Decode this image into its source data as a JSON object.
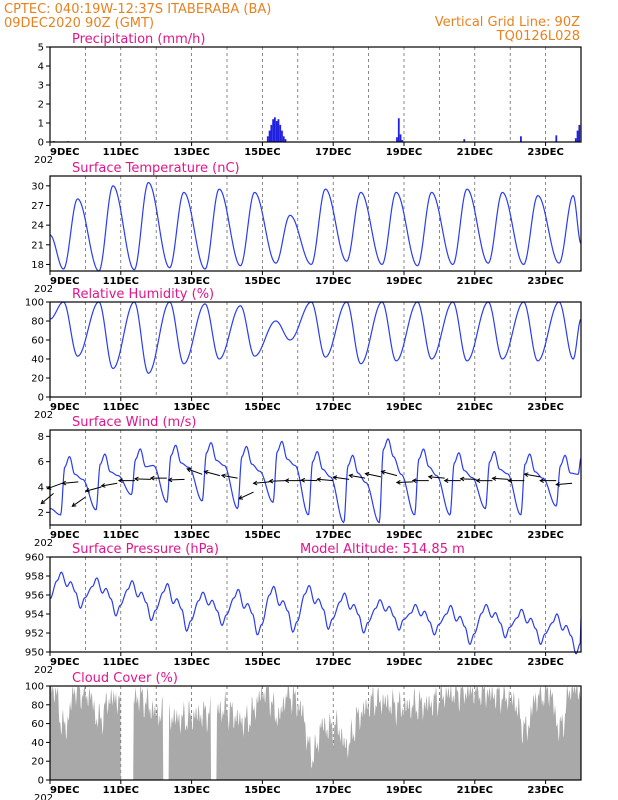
{
  "header": {
    "left_line1": "CPTEC:   040:19W-12:37S   ITABERABA (BA)",
    "left_line2": "09DEC2020 90Z (GMT)",
    "right_line1": "Vertical Grid Line: 90Z",
    "right_line2": "TQ0126L028"
  },
  "colors": {
    "header": "#e8821e",
    "title": "#e0168c",
    "line": "#2b3df0",
    "bar": "#2020e0",
    "cloud": "#a9a9a9",
    "arrow": "#000000"
  },
  "x_axis": {
    "days": 15,
    "tick_labels": [
      "9DEC",
      "11DEC",
      "13DEC",
      "15DEC",
      "17DEC",
      "19DEC",
      "21DEC",
      "23DEC"
    ],
    "tick_days": [
      0,
      2,
      4,
      6,
      8,
      10,
      12,
      14
    ],
    "below_label": "202"
  },
  "chart_data": [
    {
      "id": "precip",
      "type": "bar",
      "title": "Precipitation (mm/h)",
      "ylim": [
        0,
        5
      ],
      "yticks": [
        0,
        1,
        2,
        3,
        4,
        5
      ],
      "points": [
        [
          0.1,
          0.05
        ],
        [
          0.5,
          0.04
        ],
        [
          6.15,
          0.3
        ],
        [
          6.2,
          0.6
        ],
        [
          6.25,
          0.9
        ],
        [
          6.3,
          1.2
        ],
        [
          6.35,
          1.3
        ],
        [
          6.4,
          1.1
        ],
        [
          6.45,
          1.2
        ],
        [
          6.5,
          0.9
        ],
        [
          6.55,
          0.6
        ],
        [
          6.6,
          0.3
        ],
        [
          6.65,
          0.15
        ],
        [
          9.8,
          0.25
        ],
        [
          9.85,
          1.25
        ],
        [
          9.9,
          0.4
        ],
        [
          9.95,
          0.1
        ],
        [
          11.7,
          0.15
        ],
        [
          13.3,
          0.3
        ],
        [
          14.3,
          0.35
        ],
        [
          14.85,
          0.2
        ],
        [
          14.9,
          0.6
        ],
        [
          14.95,
          0.9
        ]
      ]
    },
    {
      "id": "temp",
      "type": "line",
      "title": "Surface Temperature (nC)",
      "ylim": [
        17,
        31.5
      ],
      "yticks": [
        18,
        21,
        24,
        27,
        30
      ],
      "diurnal": {
        "mins": [
          17.3,
          17.0,
          17.2,
          17.5,
          17.3,
          17.8,
          18.2,
          18.0,
          18.5,
          18.0,
          17.8,
          18.0,
          18.2,
          18.0,
          18.2
        ],
        "maxs": [
          28.0,
          30.0,
          30.5,
          29.0,
          29.5,
          29.0,
          25.5,
          29.5,
          29.0,
          29.0,
          29.0,
          29.5,
          29.0,
          28.5,
          28.5
        ],
        "end": 21.2,
        "min_hour": 0.38,
        "max_hour": 0.78
      }
    },
    {
      "id": "rh",
      "type": "line",
      "title": "Relative Humidity (%)",
      "ylim": [
        0,
        100
      ],
      "yticks": [
        0,
        20,
        40,
        60,
        80,
        100
      ],
      "diurnal": {
        "peaks": [
          100,
          100,
          100,
          100,
          98,
          96,
          80,
          100,
          100,
          100,
          100,
          100,
          100,
          100,
          100
        ],
        "troughs": [
          43,
          30,
          25,
          35,
          40,
          43,
          60,
          42,
          35,
          38,
          40,
          38,
          40,
          38,
          40
        ],
        "end": 82,
        "peak_hour": 0.38,
        "trough_hour": 0.78
      }
    },
    {
      "id": "wind",
      "type": "line",
      "title": "Surface Wind (m/s)",
      "ylim": [
        1,
        8.5
      ],
      "yticks": [
        2,
        4,
        6,
        8
      ],
      "diurnal": {
        "lows": [
          1.8,
          2.2,
          3.4,
          2.8,
          2.9,
          2.3,
          2.8,
          1.8,
          1.2,
          1.2,
          1.8,
          1.8,
          2.3,
          1.8,
          2.5
        ],
        "highs": [
          6.4,
          6.6,
          7.0,
          7.3,
          7.5,
          7.2,
          7.6,
          6.8,
          6.5,
          7.8,
          7.0,
          6.7,
          6.8,
          6.6,
          6.5
        ],
        "end": 6.3,
        "low_hour": 0.3,
        "high_hour": 0.55
      },
      "arrows": [
        [
          0.1,
          3.5,
          220
        ],
        [
          0.35,
          4.3,
          200
        ],
        [
          0.8,
          4.4,
          185
        ],
        [
          1.0,
          3.2,
          215
        ],
        [
          1.45,
          4.0,
          195
        ],
        [
          1.9,
          4.3,
          190
        ],
        [
          2.4,
          4.5,
          180
        ],
        [
          2.85,
          4.6,
          178
        ],
        [
          3.3,
          4.7,
          180
        ],
        [
          3.8,
          4.6,
          182
        ],
        [
          4.3,
          5.0,
          160
        ],
        [
          4.8,
          4.9,
          165
        ],
        [
          5.3,
          4.7,
          170
        ],
        [
          5.75,
          3.6,
          205
        ],
        [
          6.2,
          4.4,
          185
        ],
        [
          6.65,
          4.5,
          182
        ],
        [
          7.1,
          4.5,
          180
        ],
        [
          7.55,
          4.5,
          178
        ],
        [
          8.0,
          4.5,
          175
        ],
        [
          8.45,
          4.6,
          172
        ],
        [
          8.9,
          4.7,
          170
        ],
        [
          9.35,
          4.8,
          168
        ],
        [
          9.8,
          4.9,
          165
        ],
        [
          10.25,
          4.4,
          182
        ],
        [
          10.7,
          4.5,
          180
        ],
        [
          11.15,
          4.7,
          175
        ],
        [
          11.6,
          4.5,
          180
        ],
        [
          12.05,
          4.6,
          178
        ],
        [
          12.5,
          4.5,
          180
        ],
        [
          12.95,
          4.6,
          176
        ],
        [
          13.4,
          4.5,
          180
        ],
        [
          13.85,
          4.8,
          170
        ],
        [
          14.3,
          4.5,
          180
        ],
        [
          14.75,
          4.3,
          185
        ]
      ]
    },
    {
      "id": "pres",
      "type": "line",
      "title": "Surface Pressure (hPa)",
      "altitude_text": "Model Altitude: 514.85 m",
      "ylim": [
        950,
        960
      ],
      "yticks": [
        950,
        952,
        954,
        956,
        958,
        960
      ],
      "diurnal": {
        "big_highs": [
          958.4,
          957.8,
          957.5,
          957.2,
          956.3,
          956.6,
          956.9,
          957.0,
          956.2,
          955.5,
          955.0,
          954.9,
          955.0,
          954.5,
          954.0
        ],
        "big_lows": [
          954.6,
          953.8,
          953.3,
          952.2,
          952.8,
          951.8,
          952.1,
          952.4,
          952.0,
          952.3,
          951.8,
          950.8,
          951.5,
          950.8,
          949.8
        ],
        "end": 953.5
      }
    },
    {
      "id": "cloud",
      "type": "area",
      "title": "Cloud Cover (%)",
      "ylim": [
        0,
        100
      ],
      "yticks": [
        0,
        20,
        40,
        60,
        80,
        100
      ],
      "knots": [
        [
          0,
          97
        ],
        [
          0.6,
          96
        ],
        [
          1.2,
          90
        ],
        [
          1.9,
          86
        ],
        [
          2.5,
          88
        ],
        [
          3.1,
          70
        ],
        [
          3.7,
          65
        ],
        [
          4.3,
          70
        ],
        [
          4.9,
          75
        ],
        [
          5.5,
          62
        ],
        [
          6.1,
          95
        ],
        [
          6.7,
          92
        ],
        [
          7.3,
          68
        ],
        [
          7.9,
          55
        ],
        [
          8.5,
          62
        ],
        [
          9.2,
          85
        ],
        [
          9.9,
          78
        ],
        [
          10.6,
          80
        ],
        [
          11.3,
          92
        ],
        [
          12.0,
          95
        ],
        [
          12.7,
          90
        ],
        [
          13.4,
          80
        ],
        [
          14.1,
          94
        ],
        [
          14.8,
          97
        ],
        [
          15,
          96
        ]
      ],
      "gaps": [
        [
          2.0,
          2.35
        ],
        [
          3.2,
          3.35
        ],
        [
          4.55,
          4.7
        ]
      ]
    }
  ]
}
